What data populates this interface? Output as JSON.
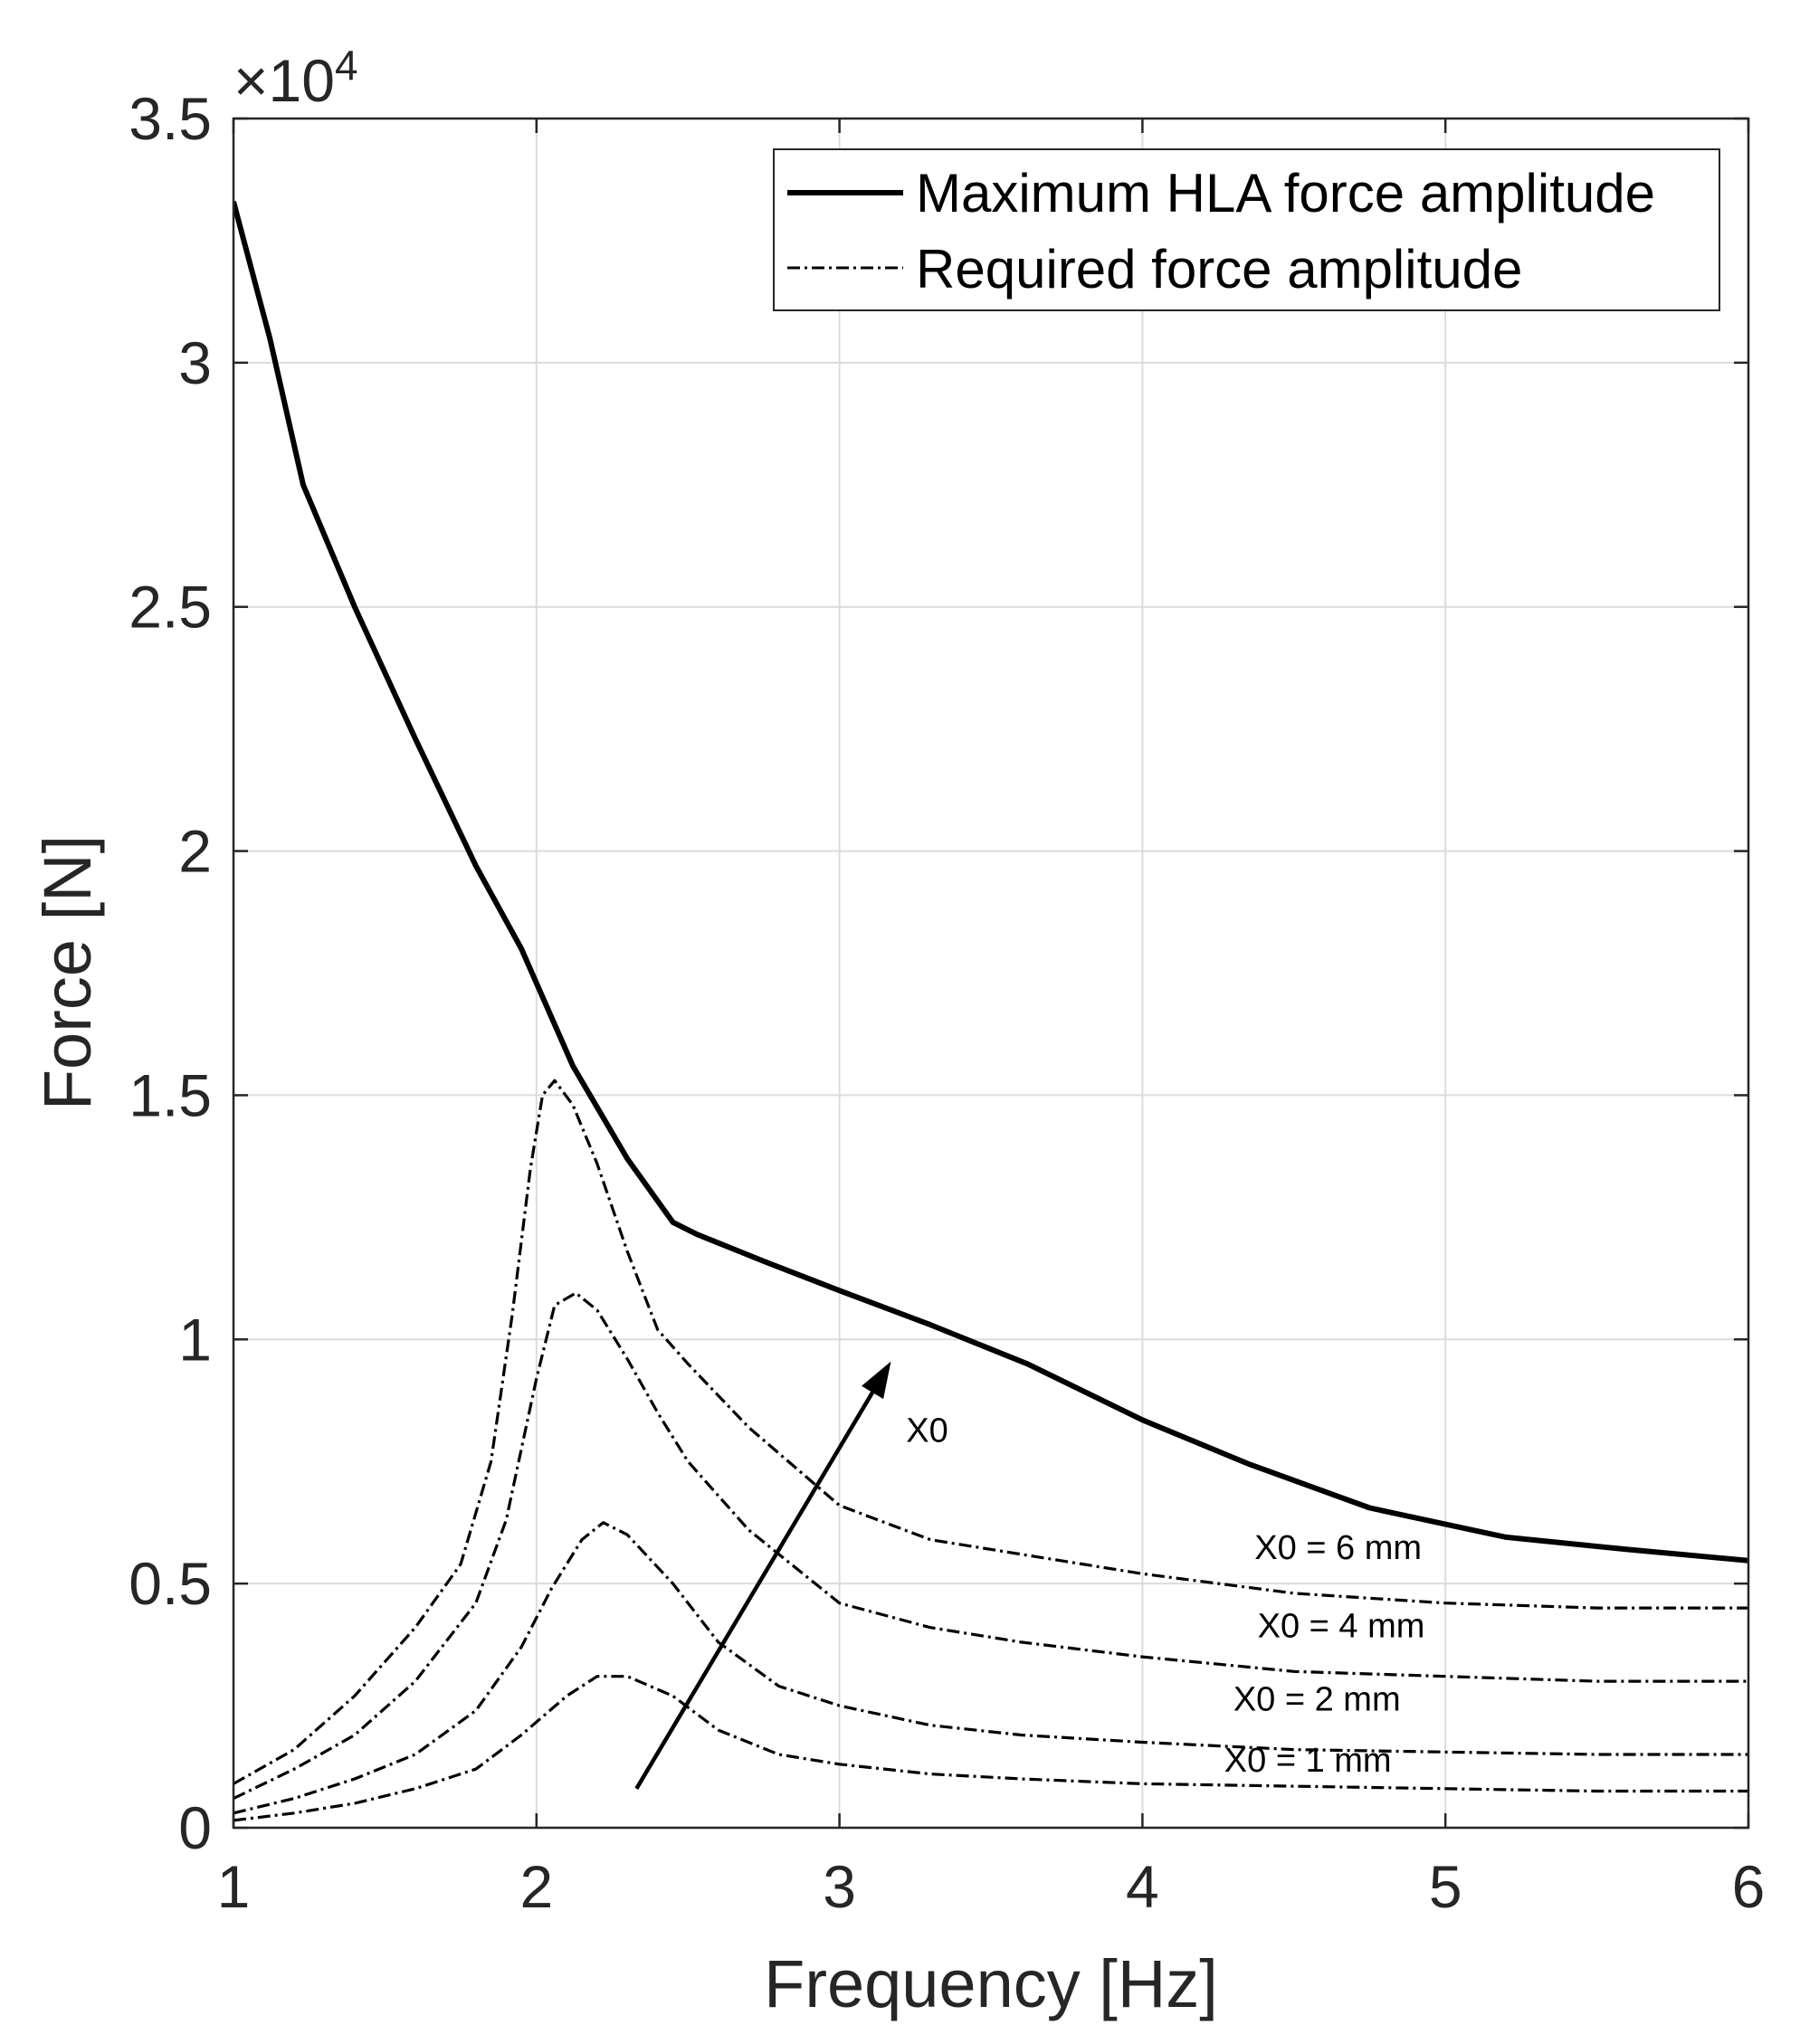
{
  "chart_data": {
    "type": "line",
    "title": "",
    "xlabel": "Frequency [Hz]",
    "ylabel": "Force [N]",
    "xlim": [
      1,
      6
    ],
    "ylim": [
      0,
      35000
    ],
    "exponent_label": {
      "prefix": "×10",
      "power": "4"
    },
    "x_ticks": [
      1,
      2,
      3,
      4,
      5,
      6
    ],
    "x_tick_labels": [
      "1",
      "2",
      "3",
      "4",
      "5",
      "6"
    ],
    "y_ticks": [
      0,
      5000,
      10000,
      15000,
      20000,
      25000,
      30000,
      35000
    ],
    "y_tick_labels": [
      "0",
      "0.5",
      "1",
      "1.5",
      "2",
      "2.5",
      "3",
      "3.5"
    ],
    "grid": true,
    "legend_position": "top-right",
    "legend": [
      {
        "label": "Maximum HLA force amplitude",
        "style": "solid"
      },
      {
        "label": "Required force amplitude",
        "style": "dashdot"
      }
    ],
    "series": [
      {
        "name": "Maximum HLA force amplitude",
        "style": "solid",
        "x": [
          1.0,
          1.03,
          1.12,
          1.23,
          1.4,
          1.6,
          1.8,
          1.95,
          2.12,
          2.3,
          2.45,
          2.53,
          2.75,
          3.0,
          3.3,
          3.62,
          4.0,
          4.35,
          4.75,
          5.2,
          5.6,
          6.0
        ],
        "y": [
          33300,
          32600,
          30500,
          27500,
          25000,
          22300,
          19700,
          18000,
          15600,
          13700,
          12400,
          12150,
          11600,
          11000,
          10300,
          9500,
          8350,
          7450,
          6550,
          5950,
          5700,
          5470
        ]
      },
      {
        "name": "X0 = 6 mm",
        "style": "dashdot",
        "x": [
          1.0,
          1.2,
          1.4,
          1.6,
          1.75,
          1.85,
          1.92,
          1.98,
          2.02,
          2.06,
          2.12,
          2.2,
          2.3,
          2.4,
          2.5,
          2.7,
          3.0,
          3.3,
          3.6,
          4.0,
          4.5,
          5.0,
          5.5,
          6.0
        ],
        "y": [
          900,
          1600,
          2700,
          4100,
          5400,
          7500,
          10500,
          13500,
          15000,
          15300,
          14800,
          13600,
          11800,
          10200,
          9500,
          8200,
          6600,
          5900,
          5600,
          5200,
          4800,
          4600,
          4500,
          4500
        ]
      },
      {
        "name": "X0 = 4 mm",
        "style": "dashdot",
        "x": [
          1.0,
          1.2,
          1.4,
          1.6,
          1.8,
          1.9,
          2.0,
          2.06,
          2.13,
          2.2,
          2.3,
          2.4,
          2.5,
          2.7,
          3.0,
          3.3,
          3.6,
          4.0,
          4.5,
          5.0,
          5.5,
          6.0
        ],
        "y": [
          600,
          1200,
          1900,
          3000,
          4600,
          6300,
          9200,
          10700,
          10950,
          10600,
          9600,
          8500,
          7500,
          6100,
          4600,
          4100,
          3800,
          3500,
          3200,
          3100,
          3000,
          3000
        ]
      },
      {
        "name": "X0 = 2 mm",
        "style": "dashdot",
        "x": [
          1.0,
          1.2,
          1.4,
          1.6,
          1.8,
          1.95,
          2.05,
          2.15,
          2.22,
          2.3,
          2.45,
          2.6,
          2.8,
          3.0,
          3.3,
          3.6,
          4.0,
          4.5,
          5.0,
          5.5,
          6.0
        ],
        "y": [
          300,
          600,
          1000,
          1500,
          2400,
          3700,
          4900,
          5900,
          6250,
          6000,
          5000,
          3800,
          2900,
          2500,
          2100,
          1900,
          1750,
          1600,
          1550,
          1500,
          1500
        ]
      },
      {
        "name": "X0 = 1 mm",
        "style": "dashdot",
        "x": [
          1.0,
          1.2,
          1.4,
          1.6,
          1.8,
          1.95,
          2.1,
          2.2,
          2.3,
          2.45,
          2.6,
          2.8,
          3.0,
          3.3,
          3.6,
          4.0,
          4.5,
          5.0,
          5.5,
          6.0
        ],
        "y": [
          150,
          300,
          500,
          800,
          1200,
          1900,
          2700,
          3100,
          3100,
          2700,
          2000,
          1500,
          1300,
          1100,
          1000,
          900,
          850,
          800,
          750,
          750
        ]
      }
    ],
    "annotations": [
      {
        "text": "X0",
        "x": 3.22,
        "y": 7900
      },
      {
        "text": "X0 = 6 mm",
        "x": 4.37,
        "y": 5500
      },
      {
        "text": "X0 = 4 mm",
        "x": 4.38,
        "y": 3900
      },
      {
        "text": "X0 = 2 mm",
        "x": 4.3,
        "y": 2400
      },
      {
        "text": "X0 = 1 mm",
        "x": 4.27,
        "y": 1150
      }
    ],
    "arrow": {
      "from": [
        2.33,
        800
      ],
      "to": [
        3.17,
        9550
      ]
    }
  }
}
